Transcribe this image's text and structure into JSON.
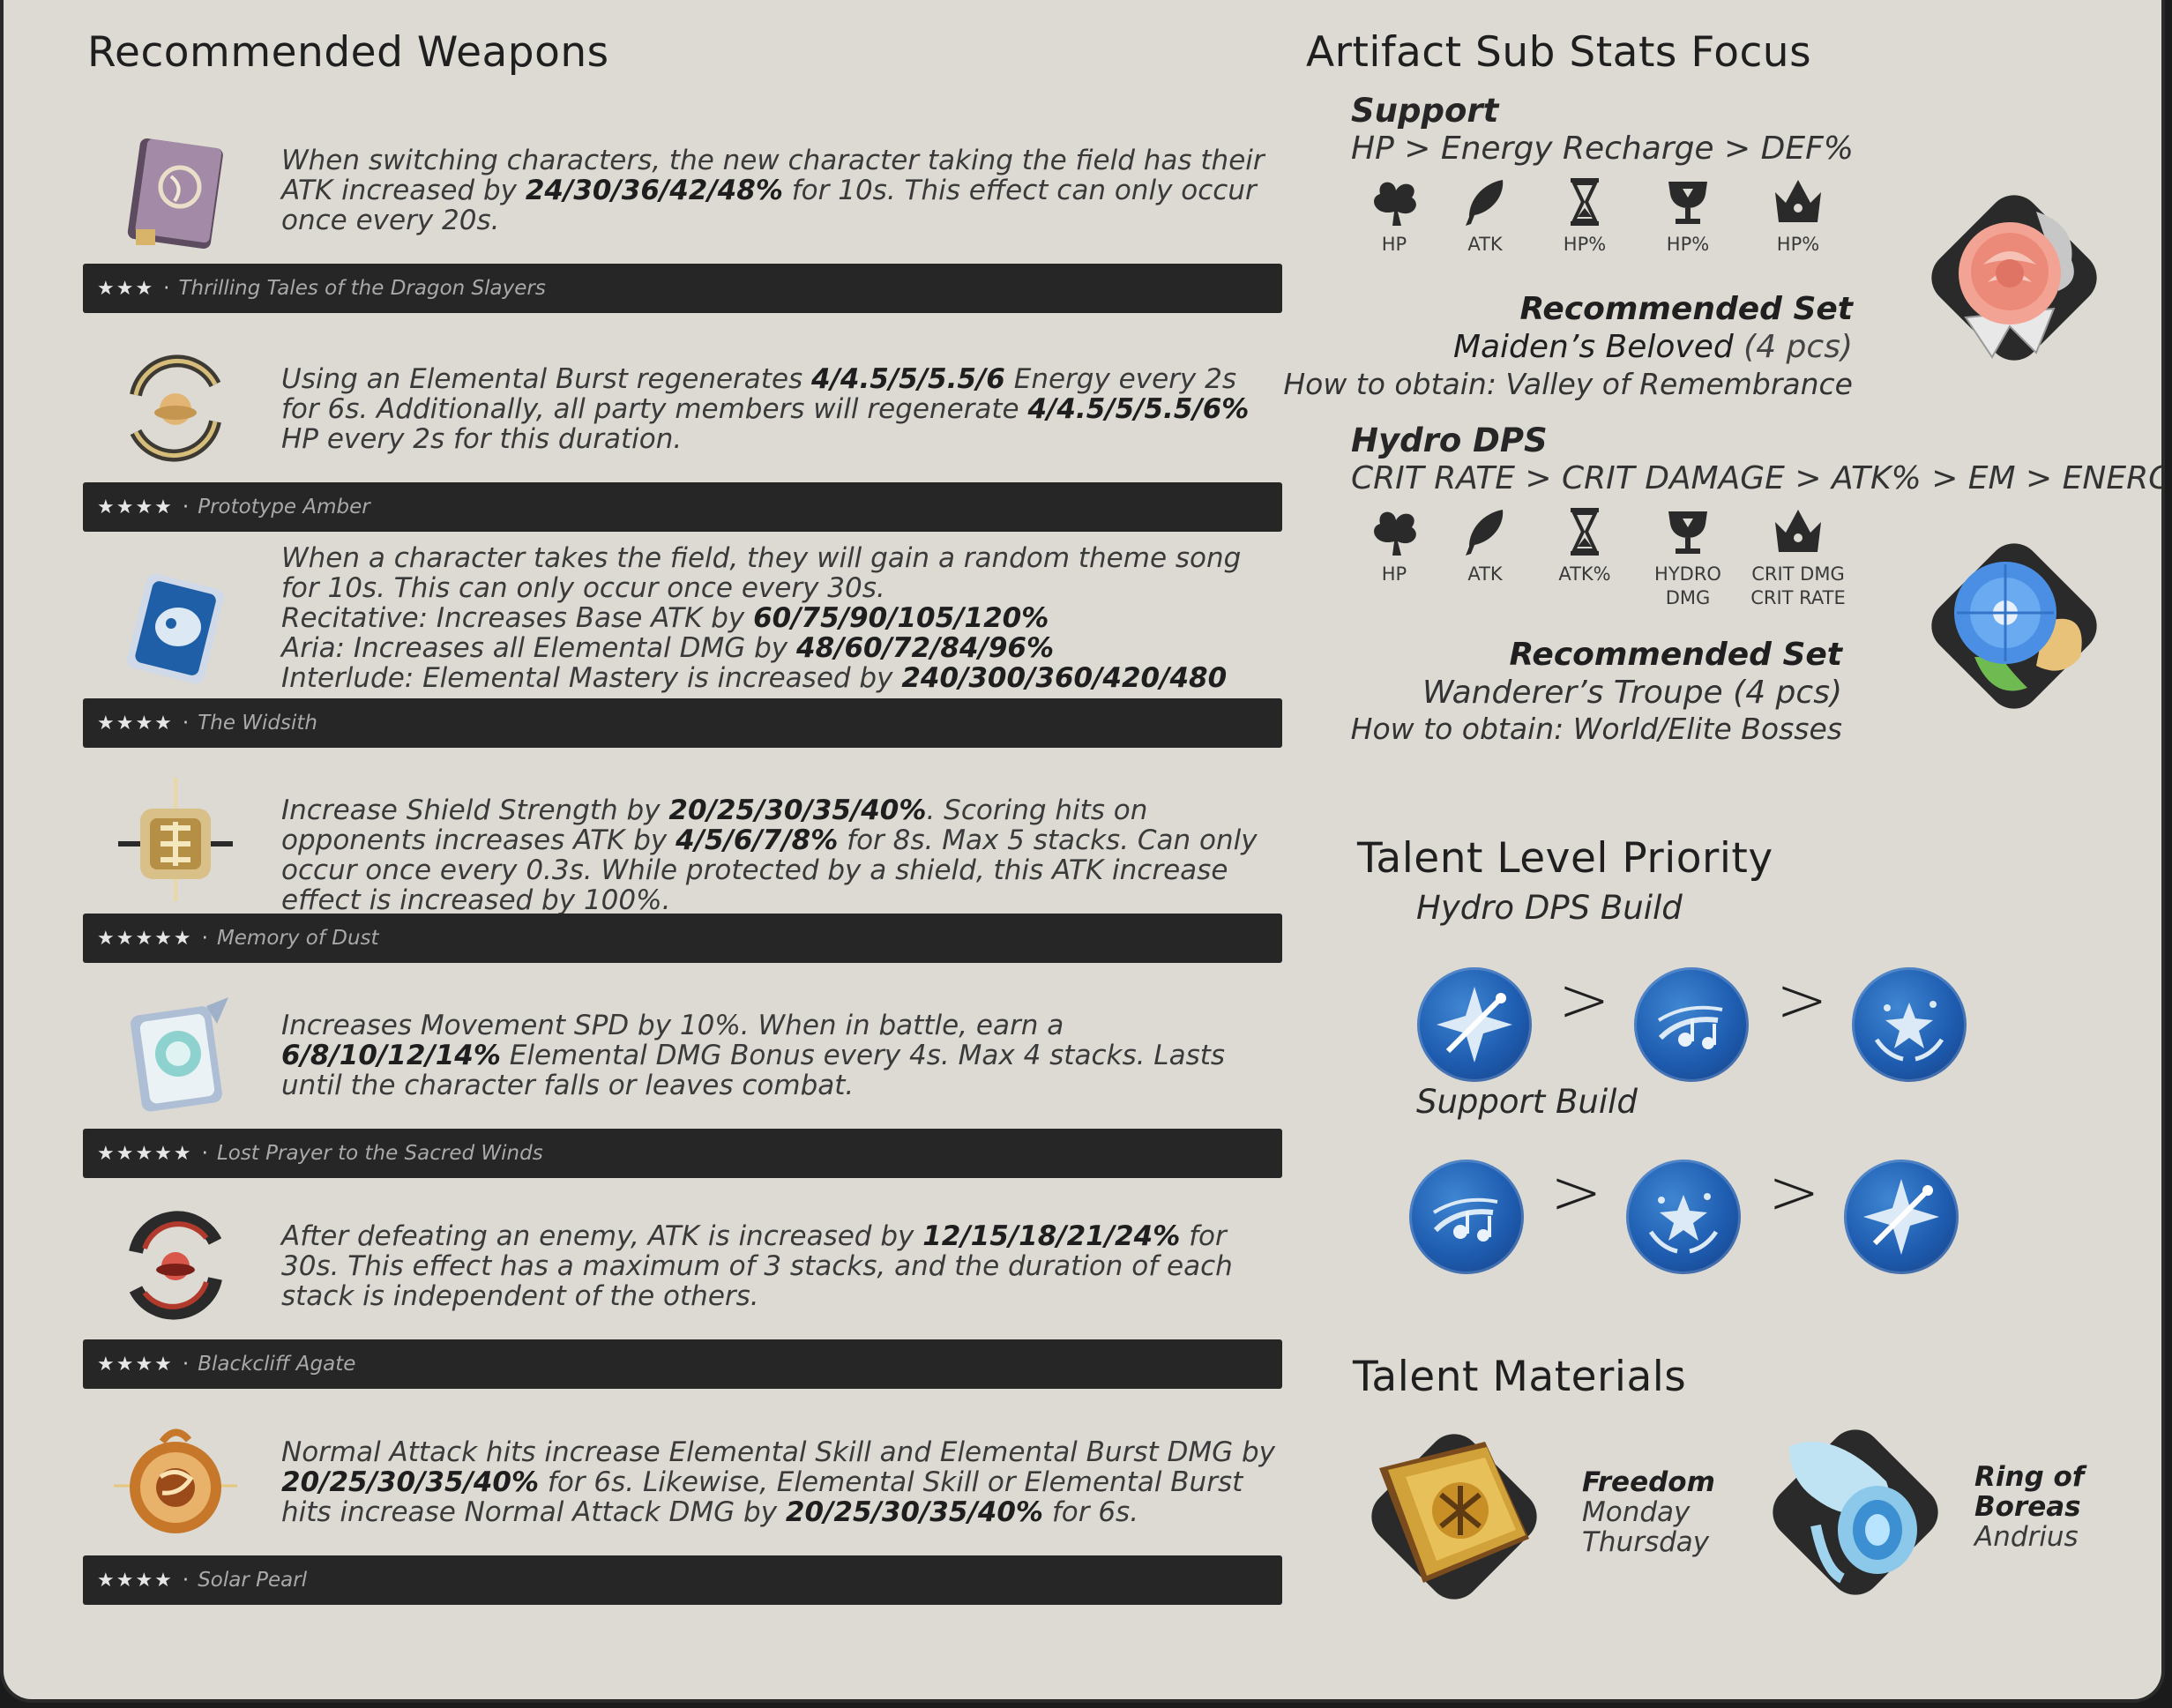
{
  "weapons_title": "Recommended Weapons",
  "weapons": [
    {
      "icon": "book-icon",
      "desc_html": "When switching characters, the new character taking the field has their ATK increased by <b>24/30/36/42/48%</b> for 10s. This effect can only occur once every 20s.",
      "stars": "★★★",
      "name": "Thrilling Tales of the Dragon Slayers"
    },
    {
      "icon": "amber-catalyst-icon",
      "desc_html": "Using an Elemental Burst regenerates <b>4/4.5/5/5.5/6</b> Energy every 2s for 6s. Additionally, all party members will regenerate <b>4/4.5/5/5.5/6%</b> HP every 2s for this duration.",
      "stars": "★★★★",
      "name": "Prototype Amber"
    },
    {
      "icon": "widsith-icon",
      "desc_html": "When a character takes the field, they will gain a random theme song for 10s. This can only occur once every 30s.<br>Recitative: Increases Base ATK by <b>60/75/90/105/120%</b><br>Aria: Increases all Elemental DMG by <b>48/60/72/84/96%</b><br>Interlude: Elemental Mastery is increased by <b>240/300/360/420/480</b>",
      "stars": "★★★★",
      "name": "The Widsith"
    },
    {
      "icon": "memory-of-dust-icon",
      "desc_html": "Increase Shield Strength by <b>20/25/30/35/40%</b>. Scoring hits on opponents increases ATK by <b>4/5/6/7/8%</b> for 8s. Max 5 stacks. Can only occur once every 0.3s. While protected by a shield, this ATK increase effect is increased by 100%.",
      "stars": "★★★★★",
      "name": "Memory of Dust"
    },
    {
      "icon": "lost-prayer-icon",
      "desc_html": "Increases Movement SPD by 10%. When in battle, earn a <b>6/8/10/12/14%</b> Elemental DMG Bonus every 4s. Max 4 stacks. Lasts until the character falls or leaves combat.",
      "stars": "★★★★★",
      "name": "Lost Prayer to the Sacred Winds"
    },
    {
      "icon": "blackcliff-agate-icon",
      "desc_html": "After defeating an enemy, ATK is increased by <b>12/15/18/21/24%</b> for 30s. This effect has a maximum of 3 stacks, and the duration of each stack is independent of the others.",
      "stars": "★★★★",
      "name": "Blackcliff Agate"
    },
    {
      "icon": "solar-pearl-icon",
      "desc_html": "Normal Attack hits increase Elemental Skill and Elemental Burst DMG by <b>20/25/30/35/40%</b> for 6s. Likewise, Elemental Skill or Elemental Burst hits increase Normal Attack DMG by <b>20/25/30/35/40%</b> for 6s.",
      "stars": "★★★★",
      "name": "Solar Pearl"
    }
  ],
  "artifact": {
    "title": "Artifact Sub Stats Focus",
    "support": {
      "role": "Support",
      "priority": "HP > Energy Recharge > DEF%",
      "stats": [
        {
          "icon": "flower-icon",
          "label": "HP"
        },
        {
          "icon": "plume-icon",
          "label": "ATK"
        },
        {
          "icon": "hourglass-icon",
          "label": "HP%"
        },
        {
          "icon": "goblet-icon",
          "label": "HP%"
        },
        {
          "icon": "circlet-icon",
          "label": "HP%"
        }
      ],
      "set_heading": "Recommended Set",
      "set_name": "Maiden’s Beloved",
      "set_pcs": "(4 pcs)",
      "obtain": "How to obtain: Valley of Remembrance",
      "set_icon": "rose-icon",
      "set_color": "#f3a093"
    },
    "hydro": {
      "role": "Hydro DPS",
      "priority": "CRIT RATE > CRIT DAMAGE > ATK% > EM > ENERGY",
      "stats": [
        {
          "icon": "flower-icon",
          "label": "HP"
        },
        {
          "icon": "plume-icon",
          "label": "ATK"
        },
        {
          "icon": "hourglass-icon",
          "label": "ATK%"
        },
        {
          "icon": "goblet-icon",
          "label": "HYDRO\nDMG"
        },
        {
          "icon": "circlet-icon",
          "label": "CRIT DMG\nCRIT RATE"
        }
      ],
      "set_heading": "Recommended Set",
      "set_name": "Wanderer’s Troupe",
      "set_pcs": "(4 pcs)",
      "obtain": "How to obtain: World/Elite Bosses",
      "set_icon": "morning-glory-icon",
      "set_color": "#4a8fe3"
    }
  },
  "talent": {
    "title": "Talent Level Priority",
    "builds": [
      {
        "name": "Hydro DPS Build",
        "order": [
          "burst-star-icon",
          "normal-attack-notes-icon",
          "skill-splash-icon"
        ]
      },
      {
        "name": "Support Build",
        "order": [
          "normal-attack-notes-icon",
          "skill-splash-icon",
          "burst-star-icon"
        ]
      }
    ],
    "separator": ">"
  },
  "materials": {
    "title": "Talent Materials",
    "items": [
      {
        "icon": "freedom-book-icon",
        "lines": [
          "Freedom",
          "Monday",
          "Thursday"
        ]
      },
      {
        "icon": "ring-of-boreas-icon",
        "lines": [
          "Ring of",
          "Boreas",
          "Andrius"
        ]
      }
    ]
  },
  "colors": {
    "background": "#dcdad3",
    "bar": "#262626",
    "talent_blue": "#1e5cb0"
  }
}
